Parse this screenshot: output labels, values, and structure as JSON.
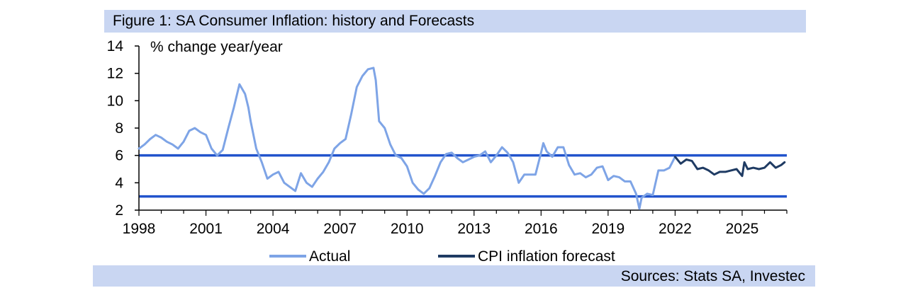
{
  "title": "Figure 1: SA Consumer Inflation: history and Forecasts",
  "source": "Sources: Stats SA, Investec",
  "colors": {
    "band": "#c9d6f2",
    "actual": "#7ea4e6",
    "forecast": "#1f3b63",
    "target": "#2153cc"
  },
  "chart_data": {
    "type": "line",
    "ylabel": "% change year/year",
    "xlim": [
      1998,
      2027
    ],
    "ylim": [
      2,
      14
    ],
    "yticks": [
      2,
      4,
      6,
      8,
      10,
      12,
      14
    ],
    "xticks": [
      1998,
      2001,
      2004,
      2007,
      2010,
      2013,
      2016,
      2019,
      2022,
      2025
    ],
    "grid": false,
    "legend_position": "bottom",
    "target_band": [
      3,
      6
    ],
    "series": [
      {
        "name": "Actual",
        "x": [
          1998.0,
          1998.25,
          1998.5,
          1998.75,
          1999.0,
          1999.25,
          1999.5,
          1999.75,
          2000.0,
          2000.25,
          2000.5,
          2000.75,
          2001.0,
          2001.25,
          2001.5,
          2001.75,
          2002.0,
          2002.25,
          2002.5,
          2002.75,
          2002.9,
          2003.0,
          2003.25,
          2003.5,
          2003.75,
          2004.0,
          2004.25,
          2004.5,
          2004.75,
          2005.0,
          2005.25,
          2005.5,
          2005.75,
          2006.0,
          2006.25,
          2006.5,
          2006.75,
          2007.0,
          2007.25,
          2007.5,
          2007.75,
          2008.0,
          2008.25,
          2008.5,
          2008.6,
          2008.75,
          2009.0,
          2009.25,
          2009.5,
          2009.75,
          2010.0,
          2010.25,
          2010.5,
          2010.75,
          2011.0,
          2011.25,
          2011.5,
          2011.75,
          2012.0,
          2012.25,
          2012.5,
          2012.75,
          2013.0,
          2013.25,
          2013.5,
          2013.75,
          2014.0,
          2014.25,
          2014.5,
          2014.75,
          2015.0,
          2015.25,
          2015.5,
          2015.75,
          2016.0,
          2016.1,
          2016.25,
          2016.5,
          2016.75,
          2017.0,
          2017.25,
          2017.5,
          2017.75,
          2018.0,
          2018.25,
          2018.5,
          2018.75,
          2019.0,
          2019.25,
          2019.5,
          2019.75,
          2020.0,
          2020.25,
          2020.4,
          2020.5,
          2020.75,
          2021.0,
          2021.25,
          2021.5,
          2021.75,
          2022.0
        ],
        "values": [
          6.5,
          6.8,
          7.2,
          7.5,
          7.3,
          7.0,
          6.8,
          6.5,
          7.0,
          7.8,
          8.0,
          7.7,
          7.5,
          6.5,
          6.0,
          6.4,
          8.0,
          9.5,
          11.2,
          10.5,
          9.5,
          8.5,
          6.5,
          5.5,
          4.3,
          4.6,
          4.8,
          4.0,
          3.7,
          3.4,
          4.7,
          4.0,
          3.7,
          4.3,
          4.8,
          5.5,
          6.5,
          6.9,
          7.2,
          9.0,
          11.0,
          11.8,
          12.3,
          12.4,
          11.5,
          8.5,
          8.0,
          6.8,
          6.0,
          5.8,
          5.2,
          4.0,
          3.5,
          3.2,
          3.6,
          4.5,
          5.5,
          6.1,
          6.2,
          5.8,
          5.5,
          5.7,
          5.9,
          6.0,
          6.3,
          5.5,
          6.0,
          6.6,
          6.2,
          5.5,
          4.0,
          4.6,
          4.6,
          4.6,
          6.2,
          6.9,
          6.3,
          5.9,
          6.6,
          6.6,
          5.3,
          4.6,
          4.7,
          4.4,
          4.6,
          5.1,
          5.2,
          4.2,
          4.5,
          4.4,
          4.1,
          4.1,
          3.2,
          2.1,
          2.9,
          3.2,
          3.1,
          4.9,
          4.9,
          5.1,
          5.9
        ]
      },
      {
        "name": "CPI inflation forecast",
        "x": [
          2022.0,
          2022.25,
          2022.5,
          2022.75,
          2023.0,
          2023.25,
          2023.5,
          2023.75,
          2024.0,
          2024.25,
          2024.5,
          2024.75,
          2025.0,
          2025.1,
          2025.25,
          2025.5,
          2025.75,
          2026.0,
          2026.25,
          2026.5,
          2026.75,
          2026.9
        ],
        "values": [
          5.9,
          5.4,
          5.7,
          5.6,
          5.0,
          5.1,
          4.9,
          4.6,
          4.8,
          4.8,
          4.9,
          5.0,
          4.5,
          5.5,
          5.0,
          5.1,
          5.0,
          5.1,
          5.5,
          5.1,
          5.3,
          5.5
        ]
      }
    ]
  }
}
